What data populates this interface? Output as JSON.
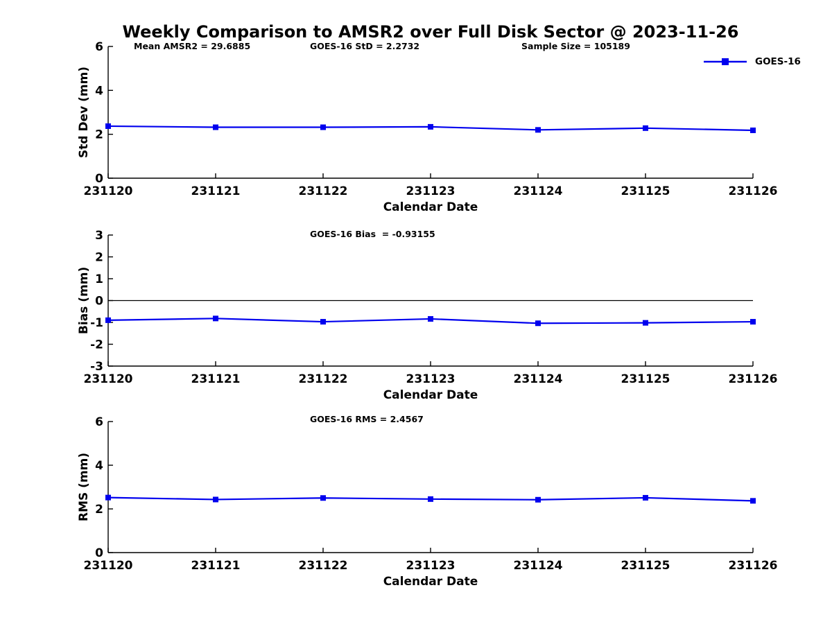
{
  "figure": {
    "title": "Weekly Comparison to AMSR2 over Full Disk Sector @ 2023-11-26"
  },
  "legend": {
    "label": "GOES-16"
  },
  "colors": {
    "series": "#0000EE",
    "axis": "#000000",
    "text": "#000000",
    "background": "#FFFFFF"
  },
  "chart_data": [
    {
      "type": "line",
      "id": "std-dev",
      "annotations": [
        "Mean AMSR2 = 29.6885",
        "GOES-16 StD = 2.2732",
        "Sample Size = 105189"
      ],
      "categories": [
        "231120",
        "231121",
        "231122",
        "231123",
        "231124",
        "231125",
        "231126"
      ],
      "series": [
        {
          "name": "GOES-16",
          "marker": "square",
          "values": [
            2.37,
            2.32,
            2.32,
            2.34,
            2.2,
            2.28,
            2.18
          ]
        }
      ],
      "xlabel": "Calendar Date",
      "ylabel": "Std Dev (mm)",
      "ylim": [
        0,
        6
      ],
      "yticks": [
        0,
        2,
        4,
        6
      ],
      "zero_line": false,
      "grid": false,
      "legend_position": "top-right-outside"
    },
    {
      "type": "line",
      "id": "bias",
      "annotations": [
        "GOES-16 Bias  = -0.93155"
      ],
      "categories": [
        "231120",
        "231121",
        "231122",
        "231123",
        "231124",
        "231125",
        "231126"
      ],
      "series": [
        {
          "name": "GOES-16",
          "marker": "square",
          "values": [
            -0.9,
            -0.82,
            -0.97,
            -0.84,
            -1.04,
            -1.02,
            -0.97
          ]
        }
      ],
      "xlabel": "Calendar Date",
      "ylabel": "Bias (mm)",
      "ylim": [
        -3,
        3
      ],
      "yticks": [
        -3,
        -2,
        -1,
        0,
        1,
        2,
        3
      ],
      "zero_line": true,
      "grid": false
    },
    {
      "type": "line",
      "id": "rms",
      "annotations": [
        "GOES-16 RMS = 2.4567"
      ],
      "categories": [
        "231120",
        "231121",
        "231122",
        "231123",
        "231124",
        "231125",
        "231126"
      ],
      "series": [
        {
          "name": "GOES-16",
          "marker": "square",
          "values": [
            2.52,
            2.43,
            2.5,
            2.45,
            2.42,
            2.51,
            2.37
          ]
        }
      ],
      "xlabel": "Calendar Date",
      "ylabel": "RMS (mm)",
      "ylim": [
        0,
        6
      ],
      "yticks": [
        0,
        2,
        4,
        6
      ],
      "zero_line": false,
      "grid": false
    }
  ]
}
